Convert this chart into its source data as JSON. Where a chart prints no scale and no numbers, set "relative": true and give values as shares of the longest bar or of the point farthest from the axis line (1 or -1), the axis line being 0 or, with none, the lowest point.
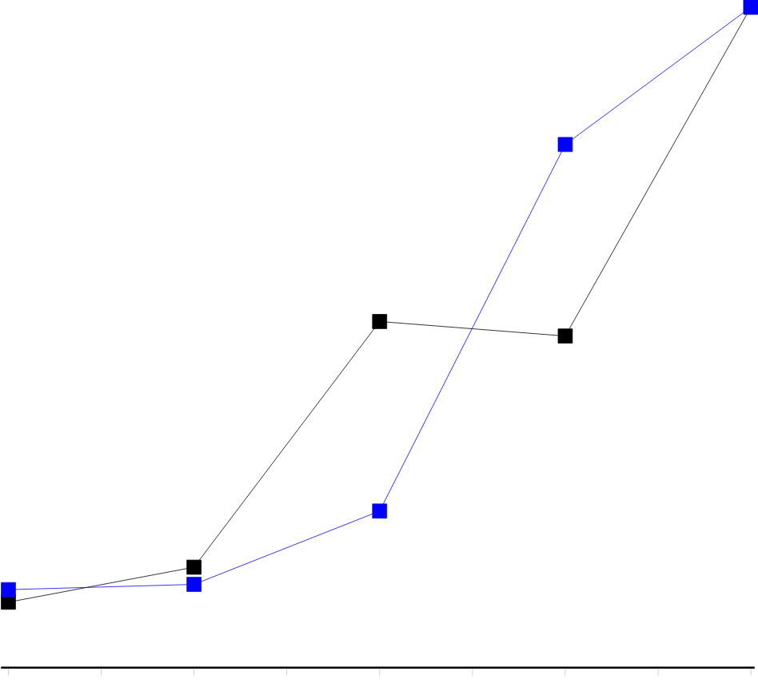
{
  "chart_data": {
    "type": "line",
    "relative": true,
    "categories": [
      null,
      null,
      null,
      null,
      null
    ],
    "series": [
      {
        "color": "#000000",
        "values": [
          0.099,
          0.152,
          0.524,
          0.502,
          1
        ]
      },
      {
        "color": "#0000ff",
        "values": [
          0.118,
          0.126,
          0.237,
          0.792,
          1
        ]
      }
    ],
    "marker": "square",
    "line_style": "solid",
    "grid": false
  }
}
